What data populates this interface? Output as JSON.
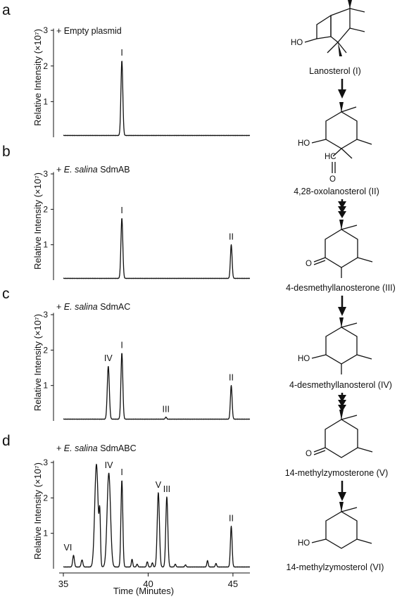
{
  "chart_data": [
    {
      "type": "line",
      "panel": "a",
      "condition": "+ Empty plasmid",
      "ylabel": "Relative Intensity (×10⁷)",
      "yticks": [
        "1",
        "2",
        "3"
      ],
      "ylim": [
        0,
        3.2
      ],
      "xlim": [
        35,
        46
      ],
      "baseline": 0.05,
      "peaks": [
        {
          "label": "I",
          "x": 38.45,
          "height": 2.1,
          "width": 0.055
        }
      ]
    },
    {
      "type": "line",
      "panel": "b",
      "condition_prefix": "+ ",
      "condition_species": "E. salina",
      "condition_gene": " SdmAB",
      "ylabel": "Relative Intensity (×10⁷)",
      "yticks": [
        "1",
        "2",
        "3"
      ],
      "ylim": [
        0,
        3.2
      ],
      "xlim": [
        35,
        46
      ],
      "baseline": 0.05,
      "peaks": [
        {
          "label": "I",
          "x": 38.45,
          "height": 1.7,
          "width": 0.055
        },
        {
          "label": "II",
          "x": 44.9,
          "height": 0.95,
          "width": 0.05
        }
      ]
    },
    {
      "type": "line",
      "panel": "c",
      "condition_prefix": "+ ",
      "condition_species": "E. salina",
      "condition_gene": " SdmAC",
      "ylabel": "Relative Intensity (×10⁷)",
      "yticks": [
        "1",
        "2",
        "3"
      ],
      "ylim": [
        0,
        3.2
      ],
      "xlim": [
        35,
        46
      ],
      "baseline": 0.05,
      "peaks": [
        {
          "label": "IV",
          "x": 37.65,
          "height": 1.5,
          "width": 0.06
        },
        {
          "label": "I",
          "x": 38.45,
          "height": 1.87,
          "width": 0.055
        },
        {
          "label": "III",
          "x": 41.05,
          "height": 0.06,
          "width": 0.04
        },
        {
          "label": "II",
          "x": 44.9,
          "height": 0.95,
          "width": 0.05
        }
      ]
    },
    {
      "type": "line",
      "panel": "d",
      "condition_prefix": "+ ",
      "condition_species": "E. salina",
      "condition_gene": " SdmABC",
      "ylabel": "Relative Intensity (×10⁷)",
      "yticks": [
        "1",
        "2",
        "3"
      ],
      "xlabel": "Time (Minutes)",
      "xticks": [
        35,
        40,
        45
      ],
      "ylim": [
        0,
        3.2
      ],
      "xlim": [
        35,
        46
      ],
      "baseline": 0.05,
      "peaks": [
        {
          "label": "VI",
          "x": 35.6,
          "height": 0.33,
          "width": 0.05
        },
        {
          "label": "",
          "x": 36.1,
          "height": 0.2,
          "width": 0.05
        },
        {
          "label": "",
          "x": 36.95,
          "height": 2.9,
          "width": 0.1
        },
        {
          "label": "",
          "x": 37.15,
          "height": 1.3,
          "width": 0.04
        },
        {
          "label": "IV",
          "x": 37.68,
          "height": 2.65,
          "width": 0.1
        },
        {
          "label": "I",
          "x": 38.45,
          "height": 2.45,
          "width": 0.055
        },
        {
          "label": "",
          "x": 39.05,
          "height": 0.22,
          "width": 0.04
        },
        {
          "label": "",
          "x": 39.35,
          "height": 0.08,
          "width": 0.04
        },
        {
          "label": "",
          "x": 39.95,
          "height": 0.15,
          "width": 0.04
        },
        {
          "label": "",
          "x": 40.25,
          "height": 0.12,
          "width": 0.04
        },
        {
          "label": "V",
          "x": 40.6,
          "height": 2.1,
          "width": 0.065
        },
        {
          "label": "III",
          "x": 41.1,
          "height": 1.98,
          "width": 0.06
        },
        {
          "label": "",
          "x": 41.6,
          "height": 0.08,
          "width": 0.04
        },
        {
          "label": "",
          "x": 42.2,
          "height": 0.06,
          "width": 0.04
        },
        {
          "label": "",
          "x": 43.5,
          "height": 0.18,
          "width": 0.04
        },
        {
          "label": "",
          "x": 44.0,
          "height": 0.1,
          "width": 0.04
        },
        {
          "label": "II",
          "x": 44.9,
          "height": 1.15,
          "width": 0.05
        }
      ]
    }
  ],
  "compounds": [
    {
      "name": "Lanosterol (I)",
      "arrow": "single-to-next"
    },
    {
      "name": "4,28-oxolanosterol (II)"
    },
    {
      "name": "4-desmethyllanosterone (III)"
    },
    {
      "name": "4-desmethyllanosterol (IV)"
    },
    {
      "name": "14-methylzymosterone (V)"
    },
    {
      "name": "14-methylzymosterol (VI)"
    }
  ],
  "atom_labels": {
    "ho": "HO",
    "hc": "HC",
    "o": "O"
  }
}
